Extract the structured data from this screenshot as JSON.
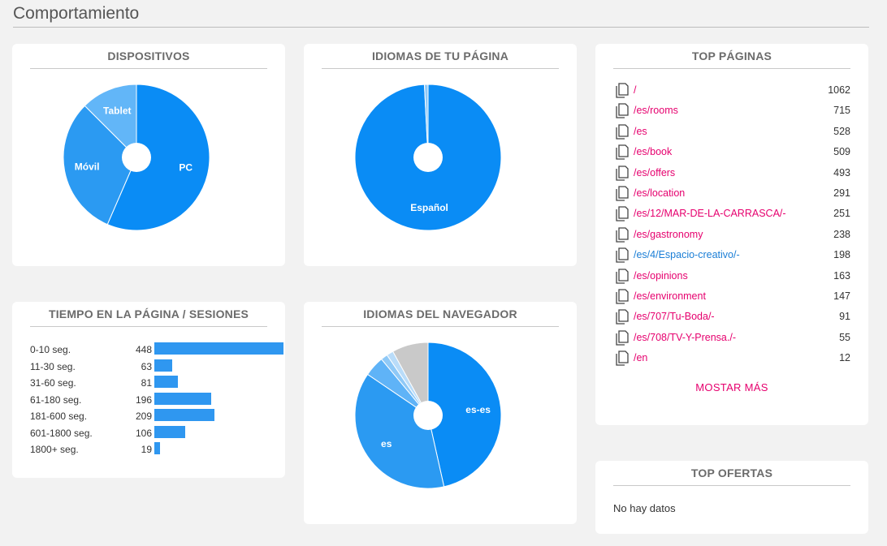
{
  "page_title": "Comportamiento",
  "dispositivos": {
    "title": "DISPOSITIVOS",
    "slices": [
      {
        "label": "PC",
        "value": 56.5,
        "color": "#0a8cf5"
      },
      {
        "label": "Móvil",
        "value": 31.0,
        "color": "#2b9af2"
      },
      {
        "label": "Tablet",
        "value": 12.5,
        "color": "#62b6f8"
      }
    ]
  },
  "idiomas_pagina": {
    "title": "IDIOMAS DE TU PÁGINA",
    "slices": [
      {
        "label": "Español",
        "value": 99.2,
        "color": "#0a8cf5"
      },
      {
        "label": "",
        "value": 0.8,
        "color": "#8fc9f7"
      }
    ]
  },
  "tiempo": {
    "title": "TIEMPO EN LA PÁGINA / SESIONES",
    "rows": [
      {
        "label": "0-10 seg.",
        "value": 448
      },
      {
        "label": "11-30 seg.",
        "value": 63
      },
      {
        "label": "31-60 seg.",
        "value": 81
      },
      {
        "label": "61-180 seg.",
        "value": 196
      },
      {
        "label": "181-600 seg.",
        "value": 209
      },
      {
        "label": "601-1800 seg.",
        "value": 106
      },
      {
        "label": "1800+ seg.",
        "value": 19
      }
    ],
    "max": 448
  },
  "idiomas_navegador": {
    "title": "IDIOMAS DEL NAVEGADOR",
    "slices": [
      {
        "label": "es-es",
        "value": 46.5,
        "color": "#0a8cf5"
      },
      {
        "label": "es",
        "value": 38.0,
        "color": "#2b9af2"
      },
      {
        "label": "",
        "value": 4.5,
        "color": "#5fb3f7"
      },
      {
        "label": "",
        "value": 1.5,
        "color": "#8fc9f7"
      },
      {
        "label": "",
        "value": 1.5,
        "color": "#b9dcf9"
      },
      {
        "label": "",
        "value": 8.0,
        "color": "#c9c9c9"
      }
    ]
  },
  "top_paginas": {
    "title": "TOP PÁGINAS",
    "rows": [
      {
        "path": "/",
        "count": "1062",
        "link": "pink"
      },
      {
        "path": "/es/rooms",
        "count": "715",
        "link": "pink"
      },
      {
        "path": "/es",
        "count": "528",
        "link": "pink"
      },
      {
        "path": "/es/book",
        "count": "509",
        "link": "pink"
      },
      {
        "path": "/es/offers",
        "count": "493",
        "link": "pink"
      },
      {
        "path": "/es/location",
        "count": "291",
        "link": "pink"
      },
      {
        "path": "/es/12/MAR-DE-LA-CARRASCA/-",
        "count": "251",
        "link": "pink"
      },
      {
        "path": "/es/gastronomy",
        "count": "238",
        "link": "pink"
      },
      {
        "path": "/es/4/Espacio-creativo/-",
        "count": "198",
        "link": "blue"
      },
      {
        "path": "/es/opinions",
        "count": "163",
        "link": "pink"
      },
      {
        "path": "/es/environment",
        "count": "147",
        "link": "pink"
      },
      {
        "path": "/es/707/Tu-Boda/-",
        "count": "91",
        "link": "pink"
      },
      {
        "path": "/es/708/TV-Y-Prensa./-",
        "count": "55",
        "link": "pink"
      },
      {
        "path": "/en",
        "count": "12",
        "link": "pink"
      }
    ],
    "more_label": "MOSTAR MÁS"
  },
  "top_ofertas": {
    "title": "TOP OFERTAS",
    "empty_text": "No hay datos"
  }
}
